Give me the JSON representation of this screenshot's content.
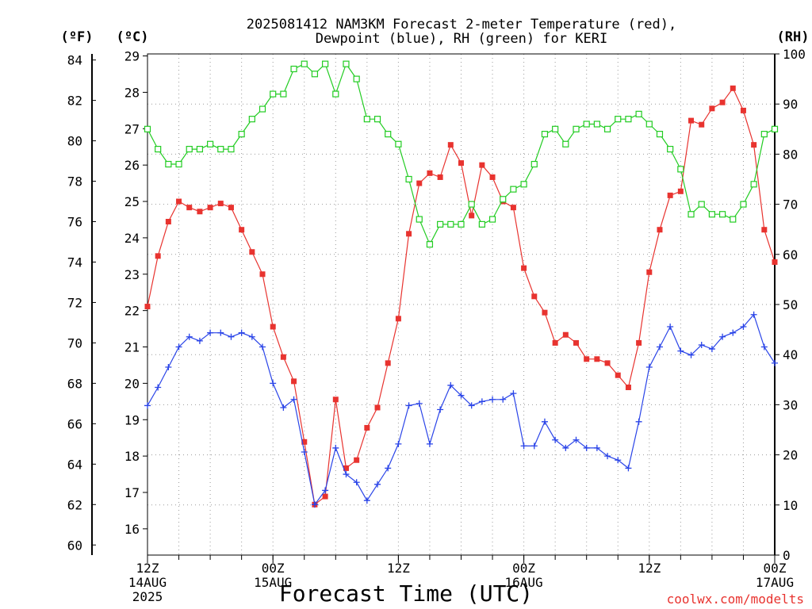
{
  "chart_data": {
    "type": "line",
    "title_lines": [
      "2025081412 NAM3KM Forecast 2-meter Temperature (red),",
      "Dewpoint (blue), RH (green) for KERI"
    ],
    "xlabel": "Forecast Time (UTC)",
    "credit": "coolwx.com/modelts",
    "units": {
      "left_f": "(ºF)",
      "left_c": "(ºC)",
      "right": "(RH)"
    },
    "x_hours": [
      0,
      1,
      2,
      3,
      4,
      5,
      6,
      7,
      8,
      9,
      10,
      11,
      12,
      13,
      14,
      15,
      16,
      17,
      18,
      19,
      20,
      21,
      22,
      23,
      24,
      25,
      26,
      27,
      28,
      29,
      30,
      31,
      32,
      33,
      34,
      35,
      36,
      37,
      38,
      39,
      40,
      41,
      42,
      43,
      44,
      45,
      46,
      47,
      48,
      49,
      50,
      51,
      52,
      53,
      54,
      55,
      56,
      57,
      58,
      59,
      60
    ],
    "x_ticks": [
      {
        "hour": 0,
        "lines": [
          "12Z",
          "14AUG",
          "2025"
        ]
      },
      {
        "hour": 12,
        "lines": [
          "00Z",
          "15AUG"
        ]
      },
      {
        "hour": 24,
        "lines": [
          "12Z"
        ]
      },
      {
        "hour": 36,
        "lines": [
          "00Z",
          "16AUG"
        ]
      },
      {
        "hour": 48,
        "lines": [
          "12Z"
        ]
      },
      {
        "hour": 60,
        "lines": [
          "00Z",
          "17AUG"
        ]
      }
    ],
    "y_left_f": {
      "min": 59.5,
      "max": 84.3,
      "ticks": [
        60,
        62,
        64,
        66,
        68,
        70,
        72,
        74,
        76,
        78,
        80,
        82,
        84
      ]
    },
    "y_left_c": {
      "ticks": [
        16,
        17,
        18,
        19,
        20,
        21,
        22,
        23,
        24,
        25,
        26,
        27,
        28,
        29
      ]
    },
    "y_right": {
      "min": 0,
      "max": 100,
      "ticks": [
        0,
        10,
        20,
        30,
        40,
        50,
        60,
        70,
        80,
        90,
        100
      ]
    },
    "grid": true,
    "series": [
      {
        "name": "2-meter Temperature",
        "color": "#e8332f",
        "marker": "filled-square",
        "axis": "f",
        "values": [
          71.8,
          74.3,
          76.0,
          77.0,
          76.7,
          76.5,
          76.7,
          76.9,
          76.7,
          75.6,
          74.5,
          73.4,
          70.8,
          69.3,
          68.1,
          65.1,
          62.0,
          62.4,
          67.2,
          63.8,
          64.2,
          65.8,
          66.8,
          69.0,
          71.2,
          75.4,
          77.9,
          78.4,
          78.2,
          79.8,
          78.9,
          76.3,
          78.8,
          78.2,
          77.0,
          76.7,
          73.7,
          72.3,
          71.5,
          70.0,
          70.4,
          70.0,
          69.2,
          69.2,
          69.0,
          68.4,
          67.8,
          70.0,
          73.5,
          75.6,
          77.3,
          77.5,
          81.0,
          80.8,
          81.6,
          81.9,
          82.6,
          81.5,
          79.8,
          75.6,
          74.0
        ]
      },
      {
        "name": "Dewpoint",
        "color": "#2a44e8",
        "marker": "plus",
        "axis": "f",
        "values": [
          66.9,
          67.8,
          68.8,
          69.8,
          70.3,
          70.1,
          70.5,
          70.5,
          70.3,
          70.5,
          70.3,
          69.8,
          68.0,
          66.8,
          67.2,
          64.6,
          62.0,
          62.7,
          64.8,
          63.5,
          63.1,
          62.2,
          63.0,
          63.8,
          65.0,
          66.9,
          67.0,
          65.0,
          66.7,
          67.9,
          67.4,
          66.9,
          67.1,
          67.2,
          67.2,
          67.5,
          64.9,
          64.9,
          66.1,
          65.2,
          64.8,
          65.2,
          64.8,
          64.8,
          64.4,
          64.2,
          63.8,
          66.1,
          68.8,
          69.8,
          70.8,
          69.6,
          69.4,
          69.9,
          69.7,
          70.3,
          70.5,
          70.8,
          71.4,
          69.8,
          69.0
        ]
      },
      {
        "name": "RH",
        "color": "#22cc22",
        "marker": "open-square",
        "axis": "rh",
        "values": [
          85,
          81,
          78,
          78,
          81,
          81,
          82,
          81,
          81,
          84,
          87,
          89,
          92,
          92,
          97,
          98,
          96,
          98,
          92,
          98,
          95,
          87,
          87,
          84,
          82,
          75,
          67,
          62,
          66,
          66,
          66,
          70,
          66,
          67,
          71,
          73,
          74,
          78,
          84,
          85,
          82,
          85,
          86,
          86,
          85,
          87,
          87,
          88,
          86,
          84,
          81,
          77,
          68,
          70,
          68,
          68,
          67,
          70,
          74,
          84,
          85
        ]
      }
    ]
  }
}
